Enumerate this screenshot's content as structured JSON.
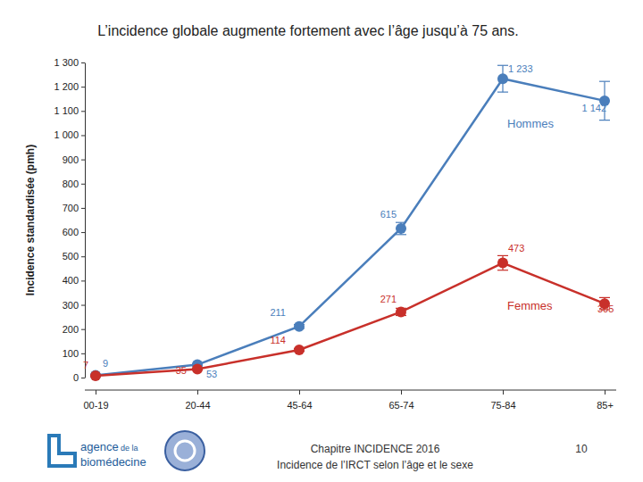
{
  "chart_data": {
    "type": "line",
    "title": "L’incidence globale augmente fortement avec l’âge jusqu’à 75 ans.",
    "y_label": "Incidence standardisée (pmh)",
    "categories": [
      "00-19",
      "20-44",
      "45-64",
      "65-74",
      "75-84",
      "85+"
    ],
    "series": [
      {
        "name": "Hommes",
        "color": "#4a7ebb",
        "marker": "circle",
        "values": [
          9,
          53,
          211,
          615,
          1233,
          1142
        ],
        "value_labels": [
          "9",
          "53",
          "211",
          "615",
          "1 233",
          "1 142"
        ],
        "errors": [
          3,
          5,
          8,
          25,
          55,
          80
        ]
      },
      {
        "name": "Femmes",
        "color": "#c8302a",
        "marker": "circle",
        "values": [
          7,
          35,
          114,
          271,
          473,
          305
        ],
        "errors": [
          2,
          4,
          6,
          15,
          30,
          25
        ]
      }
    ],
    "ylim": [
      0,
      1300
    ],
    "yticks": [
      0,
      100,
      200,
      300,
      400,
      500,
      600,
      700,
      800,
      900,
      {
        "value": 1000,
        "label": "1 000"
      },
      {
        "value": 1100,
        "label": "1 100"
      },
      {
        "value": 1200,
        "label": "1 200"
      },
      {
        "value": 1300,
        "label": "1 300"
      }
    ],
    "grid": false,
    "data_labels": true,
    "annotations": [
      "agence",
      "de la",
      "biomédecine",
      "Chapitre INCIDENCE 2016",
      "Incidence de l’IRCT selon l’âge et le sexe",
      "10"
    ]
  }
}
